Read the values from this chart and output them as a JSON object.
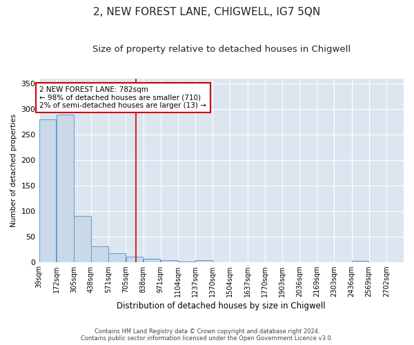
{
  "title": "2, NEW FOREST LANE, CHIGWELL, IG7 5QN",
  "subtitle": "Size of property relative to detached houses in Chigwell",
  "xlabel": "Distribution of detached houses by size in Chigwell",
  "ylabel": "Number of detached properties",
  "footer_line1": "Contains HM Land Registry data © Crown copyright and database right 2024.",
  "footer_line2": "Contains public sector information licensed under the Open Government Licence v3.0.",
  "bins": [
    39,
    172,
    305,
    438,
    571,
    705,
    838,
    971,
    1104,
    1237,
    1370,
    1504,
    1637,
    1770,
    1903,
    2036,
    2169,
    2303,
    2436,
    2569,
    2702
  ],
  "bar_labels": [
    "39sqm",
    "172sqm",
    "305sqm",
    "438sqm",
    "571sqm",
    "705sqm",
    "838sqm",
    "971sqm",
    "1104sqm",
    "1237sqm",
    "1370sqm",
    "1504sqm",
    "1637sqm",
    "1770sqm",
    "1903sqm",
    "2036sqm",
    "2169sqm",
    "2303sqm",
    "2436sqm",
    "2569sqm",
    "2702sqm"
  ],
  "values": [
    280,
    290,
    90,
    30,
    17,
    10,
    6,
    3,
    1,
    4,
    0,
    0,
    0,
    0,
    0,
    0,
    0,
    0,
    2,
    0,
    0
  ],
  "bar_color": "#c9d9e8",
  "bar_edge_color": "#5b9bd5",
  "vline_x": 782,
  "vline_color": "#cc0000",
  "annotation_text": "2 NEW FOREST LANE: 782sqm\n← 98% of detached houses are smaller (710)\n2% of semi-detached houses are larger (13) →",
  "annotation_box_color": "#ffffff",
  "annotation_box_edge": "#cc0000",
  "ylim": [
    0,
    360
  ],
  "yticks": [
    0,
    50,
    100,
    150,
    200,
    250,
    300,
    350
  ],
  "bg_color": "#dde5f0",
  "title_fontsize": 11,
  "subtitle_fontsize": 9.5
}
